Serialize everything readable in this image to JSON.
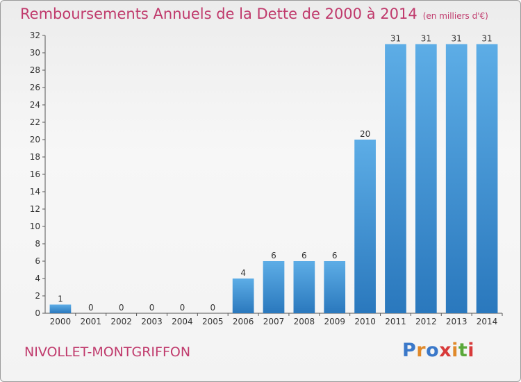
{
  "title": "Remboursements Annuels de la Dette de 2000 à 2014",
  "unit": "(en milliers d'€)",
  "place": "NIVOLLET-MONTGRIFFON",
  "logo": {
    "text": "Proxiti",
    "colors": [
      "#3a78c9",
      "#e0892a",
      "#3a78c9",
      "#d83a3a",
      "#e0892a",
      "#5aa83a",
      "#d83a3a"
    ]
  },
  "chart_data": {
    "type": "bar",
    "categories": [
      "2000",
      "2001",
      "2002",
      "2003",
      "2004",
      "2005",
      "2006",
      "2007",
      "2008",
      "2009",
      "2010",
      "2011",
      "2012",
      "2013",
      "2014"
    ],
    "values": [
      1,
      0,
      0,
      0,
      0,
      0,
      4,
      6,
      6,
      6,
      20,
      31,
      31,
      31,
      31
    ],
    "data_labels": [
      "1",
      "0",
      "0",
      "0",
      "0",
      "0",
      "4",
      "6",
      "6",
      "6",
      "20",
      "31",
      "31",
      "31",
      "31"
    ],
    "ylim": [
      0,
      32
    ],
    "yticks": [
      0,
      2,
      4,
      6,
      8,
      10,
      12,
      14,
      16,
      18,
      20,
      22,
      24,
      26,
      28,
      30,
      32
    ],
    "grid": "none",
    "bar_color": "#3d8fd6"
  }
}
